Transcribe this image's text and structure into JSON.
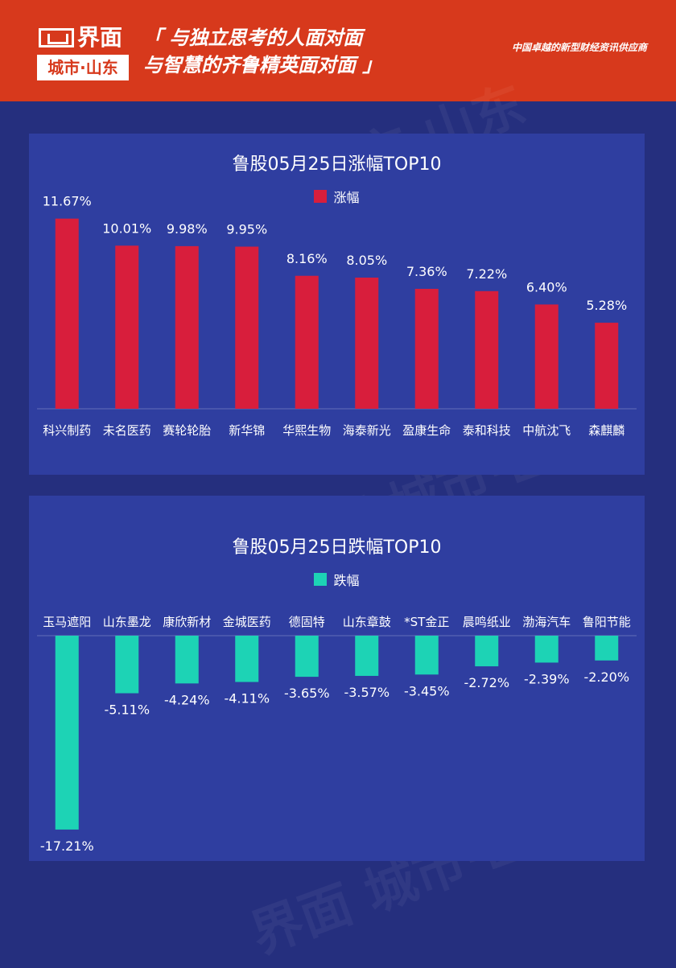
{
  "header": {
    "logo_main": "界面",
    "logo_sub": "城市·山东",
    "slogan_line1": "「 与独立思考的人面对面",
    "slogan_line2": "与智慧的齐鲁精英面对面 」",
    "tagline": "中国卓越的新型财经资讯供应商"
  },
  "watermark": "界面 城市·山东",
  "colors": {
    "header_bg": "#d7391c",
    "page_bg": "#252f7e",
    "panel_bg": "#2f3ea0",
    "gain_bar": "#d81e3c",
    "loss_bar": "#1dd3b5"
  },
  "chart_data": [
    {
      "type": "bar",
      "title": "鲁股05月25日涨幅TOP10",
      "categories": [
        "科兴制药",
        "未名医药",
        "赛轮轮胎",
        "新华锦",
        "华熙生物",
        "海泰新光",
        "盈康生命",
        "泰和科技",
        "中航沈飞",
        "森麒麟"
      ],
      "series": [
        {
          "name": "涨幅",
          "values": [
            11.67,
            10.01,
            9.98,
            9.95,
            8.16,
            8.05,
            7.36,
            7.22,
            6.4,
            5.28
          ],
          "labels": [
            "11.67%",
            "10.01%",
            "9.98%",
            "9.95%",
            "8.16%",
            "8.05%",
            "7.36%",
            "7.22%",
            "6.40%",
            "5.28%"
          ]
        }
      ],
      "color": "#d81e3c",
      "ylim": [
        0,
        12
      ],
      "legend": "top-center",
      "grid": false
    },
    {
      "type": "bar",
      "title": "鲁股05月25日跌幅TOP10",
      "categories": [
        "玉马遮阳",
        "山东墨龙",
        "康欣新材",
        "金城医药",
        "德固特",
        "山东章鼓",
        "*ST金正",
        "晨鸣纸业",
        "渤海汽车",
        "鲁阳节能"
      ],
      "series": [
        {
          "name": "跌幅",
          "values": [
            -17.21,
            -5.11,
            -4.24,
            -4.11,
            -3.65,
            -3.57,
            -3.45,
            -2.72,
            -2.39,
            -2.2
          ],
          "labels": [
            "-17.21%",
            "-5.11%",
            "-4.24%",
            "-4.11%",
            "-3.65%",
            "-3.57%",
            "-3.45%",
            "-2.72%",
            "-2.39%",
            "-2.20%"
          ]
        }
      ],
      "color": "#1dd3b5",
      "ylim": [
        -17.5,
        0
      ],
      "legend": "top-center",
      "grid": false
    }
  ]
}
